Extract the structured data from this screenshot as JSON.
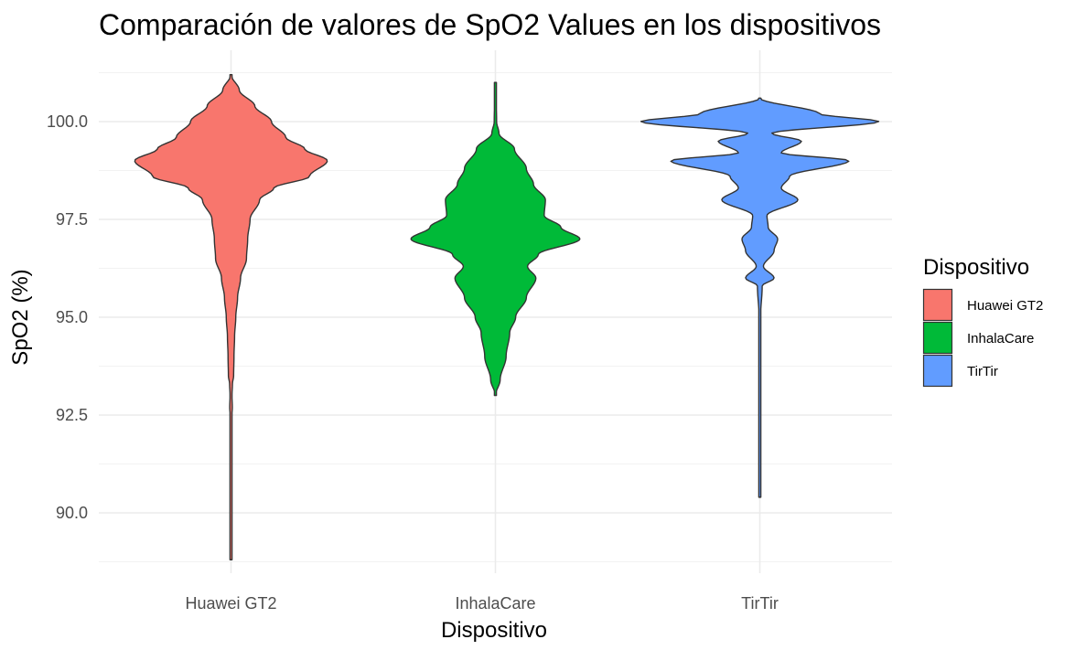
{
  "chart_data": {
    "type": "violin",
    "title": "Comparación de valores de SpO2 Values en los dispositivos",
    "xlabel": "Dispositivo",
    "ylabel": "SpO2 (%)",
    "ylim": [
      88.9,
      101.8
    ],
    "yticks": [
      "90.0",
      "92.5",
      "95.0",
      "97.5",
      "100.0"
    ],
    "categories": [
      "Huawei GT2",
      "InhalaCare",
      "TirTir"
    ],
    "legend": {
      "title": "Dispositivo",
      "position": "right"
    },
    "grid": true,
    "series": [
      {
        "name": "Huawei GT2",
        "color": "#F8766D",
        "min": 88.8,
        "max": 101.2,
        "density_profile": [
          [
            88.8,
            0.003
          ],
          [
            91.0,
            0.003
          ],
          [
            92.4,
            0.005
          ],
          [
            92.7,
            0.011
          ],
          [
            93.0,
            0.008
          ],
          [
            93.3,
            0.012
          ],
          [
            93.5,
            0.022
          ],
          [
            94.0,
            0.025
          ],
          [
            94.5,
            0.03
          ],
          [
            95.0,
            0.04
          ],
          [
            95.5,
            0.055
          ],
          [
            96.0,
            0.08
          ],
          [
            96.5,
            0.13
          ],
          [
            97.0,
            0.14
          ],
          [
            97.5,
            0.16
          ],
          [
            98.0,
            0.24
          ],
          [
            98.3,
            0.36
          ],
          [
            98.6,
            0.66
          ],
          [
            99.0,
            0.81
          ],
          [
            99.3,
            0.62
          ],
          [
            99.6,
            0.46
          ],
          [
            100.0,
            0.34
          ],
          [
            100.4,
            0.2
          ],
          [
            100.8,
            0.07
          ],
          [
            101.2,
            0.0
          ]
        ]
      },
      {
        "name": "InhalaCare",
        "color": "#00BA38",
        "min": 93.0,
        "max": 101.0,
        "density_profile": [
          [
            93.0,
            0.0
          ],
          [
            93.4,
            0.04
          ],
          [
            94.0,
            0.09
          ],
          [
            94.6,
            0.12
          ],
          [
            95.0,
            0.17
          ],
          [
            95.5,
            0.26
          ],
          [
            96.0,
            0.34
          ],
          [
            96.3,
            0.27
          ],
          [
            96.6,
            0.36
          ],
          [
            97.0,
            0.71
          ],
          [
            97.3,
            0.55
          ],
          [
            97.6,
            0.41
          ],
          [
            98.0,
            0.42
          ],
          [
            98.4,
            0.32
          ],
          [
            98.8,
            0.26
          ],
          [
            99.3,
            0.16
          ],
          [
            99.7,
            0.03
          ],
          [
            100.0,
            0.01
          ],
          [
            101.0,
            0.003
          ]
        ]
      },
      {
        "name": "TirTir",
        "color": "#619CFF",
        "min": 90.4,
        "max": 100.6,
        "density_profile": [
          [
            90.4,
            0.003
          ],
          [
            90.9,
            0.008
          ],
          [
            91.1,
            0.008
          ],
          [
            92.9,
            0.008
          ],
          [
            93.1,
            0.008
          ],
          [
            95.0,
            0.006
          ],
          [
            95.8,
            0.02
          ],
          [
            96.0,
            0.12
          ],
          [
            96.3,
            0.03
          ],
          [
            96.7,
            0.12
          ],
          [
            97.0,
            0.15
          ],
          [
            97.3,
            0.07
          ],
          [
            97.6,
            0.06
          ],
          [
            98.0,
            0.32
          ],
          [
            98.3,
            0.18
          ],
          [
            98.6,
            0.25
          ],
          [
            99.0,
            0.75
          ],
          [
            99.2,
            0.18
          ],
          [
            99.5,
            0.35
          ],
          [
            99.7,
            0.1
          ],
          [
            100.0,
            1.0
          ],
          [
            100.2,
            0.5
          ],
          [
            100.6,
            0.0
          ]
        ]
      }
    ]
  }
}
